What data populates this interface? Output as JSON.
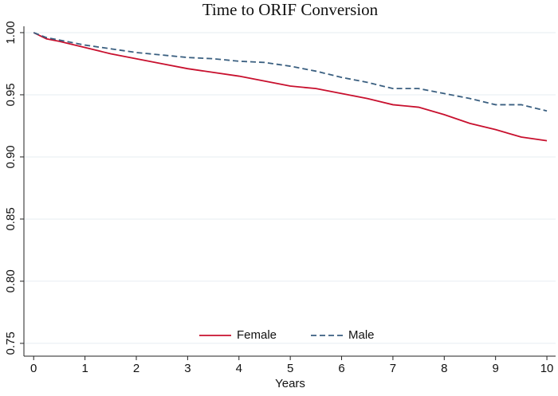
{
  "chart_data": {
    "type": "line",
    "title": "Time to ORIF Conversion",
    "x_label": "Years",
    "x": [
      0,
      0.25,
      0.5,
      1,
      1.5,
      2,
      2.5,
      3,
      3.5,
      4,
      4.5,
      5,
      5.5,
      6,
      6.5,
      7,
      7.5,
      8,
      8.5,
      9,
      9.5,
      10
    ],
    "series": [
      {
        "name": "Female",
        "color": "#c8102e",
        "line_style": "solid",
        "values": [
          1.0,
          0.995,
          0.993,
          0.988,
          0.983,
          0.979,
          0.975,
          0.971,
          0.968,
          0.965,
          0.961,
          0.957,
          0.955,
          0.951,
          0.947,
          0.942,
          0.94,
          0.934,
          0.927,
          0.922,
          0.916,
          0.913
        ]
      },
      {
        "name": "Male",
        "color": "#3a5f80",
        "line_style": "dashed",
        "values": [
          1.0,
          0.996,
          0.994,
          0.99,
          0.987,
          0.984,
          0.982,
          0.98,
          0.979,
          0.977,
          0.976,
          0.973,
          0.969,
          0.964,
          0.96,
          0.955,
          0.955,
          0.951,
          0.947,
          0.942,
          0.942,
          0.937
        ]
      }
    ],
    "xlim": [
      -0.19,
      10.17
    ],
    "xticks": [
      0,
      1,
      2,
      3,
      4,
      5,
      6,
      7,
      8,
      9,
      10
    ],
    "ylim": [
      0.7397,
      1.0051
    ],
    "yticks": [
      {
        "value": 0.75,
        "label": "0.75"
      },
      {
        "value": 0.8,
        "label": "0.80"
      },
      {
        "value": 0.85,
        "label": "0.85"
      },
      {
        "value": 0.9,
        "label": "0.90"
      },
      {
        "value": 0.95,
        "label": "0.95"
      },
      {
        "value": 1.0,
        "label": "1.00"
      }
    ],
    "grid": true,
    "legend": "bottom"
  }
}
